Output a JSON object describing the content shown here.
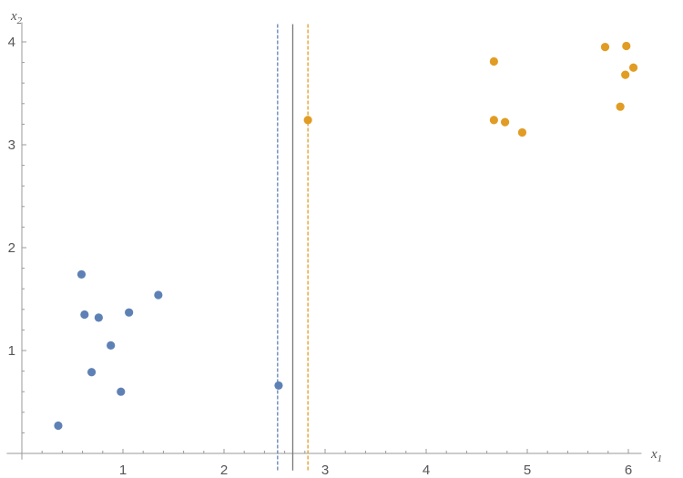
{
  "chart_data": {
    "type": "scatter",
    "title": "",
    "xlabel": "x",
    "xlabel_sub": "1",
    "ylabel": "x",
    "ylabel_sub": "2",
    "xlim": [
      -0.15,
      6.13
    ],
    "ylim": [
      -0.06,
      4.19
    ],
    "xticks": [
      1,
      2,
      3,
      4,
      5,
      6
    ],
    "yticks": [
      1,
      2,
      3,
      4
    ],
    "grid": false,
    "series": [
      {
        "color": "#5e81b5",
        "points": [
          [
            0.36,
            0.27
          ],
          [
            0.59,
            1.74
          ],
          [
            0.62,
            1.35
          ],
          [
            0.76,
            1.32
          ],
          [
            1.06,
            1.37
          ],
          [
            1.35,
            1.54
          ],
          [
            0.88,
            1.05
          ],
          [
            0.69,
            0.79
          ],
          [
            0.98,
            0.6
          ],
          [
            2.54,
            0.66
          ]
        ]
      },
      {
        "color": "#e19c24",
        "points": [
          [
            2.83,
            3.24
          ],
          [
            4.67,
            3.81
          ],
          [
            4.67,
            3.24
          ],
          [
            4.78,
            3.22
          ],
          [
            4.95,
            3.12
          ],
          [
            5.77,
            3.95
          ],
          [
            5.98,
            3.96
          ],
          [
            6.05,
            3.75
          ],
          [
            5.97,
            3.68
          ],
          [
            5.92,
            3.37
          ]
        ]
      }
    ],
    "vertical_lines": [
      {
        "x": 2.53,
        "color": "#5e81b5",
        "style": "dashed"
      },
      {
        "x": 2.68,
        "color": "#777777",
        "style": "solid"
      },
      {
        "x": 2.83,
        "color": "#e19c24",
        "style": "dashed"
      }
    ]
  }
}
